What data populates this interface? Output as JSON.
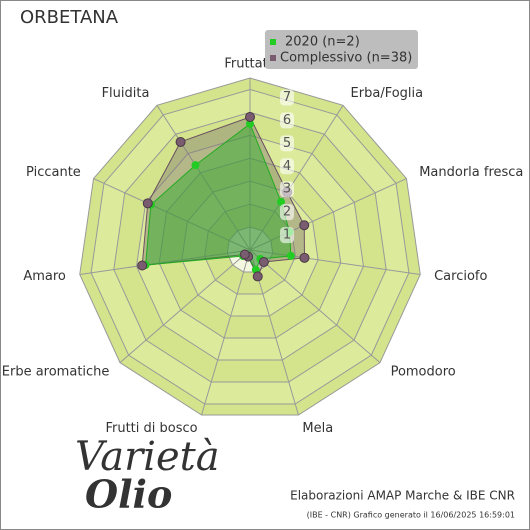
{
  "chart_data": {
    "type": "radar",
    "title": "ORBETANA",
    "categories": [
      "Fruttato",
      "Erba/Foglia",
      "Mandorla fresca",
      "Carciofo",
      "Pomodoro",
      "Mela",
      "Frutti di bosco",
      "Erbe aromatiche",
      "Amaro",
      "Piccante",
      "Fluidita"
    ],
    "series": [
      {
        "name": "2020 (n=2)",
        "color": "#22cc22",
        "values": [
          5.5,
          2.5,
          1.9,
          1.8,
          0.6,
          0.9,
          0.3,
          0.4,
          4.6,
          4.75,
          4.4
        ]
      },
      {
        "name": "Complessivo (n=38)",
        "color": "#7a5c70",
        "values": [
          5.8,
          3.0,
          2.6,
          2.4,
          0.8,
          1.2,
          0.3,
          0.3,
          4.75,
          4.9,
          5.6
        ]
      }
    ],
    "ylim": [
      0,
      7.5
    ],
    "yticks": [
      1,
      2,
      3,
      4,
      5,
      6,
      7
    ],
    "legend": "top-right"
  },
  "logo": {
    "line1": "Varietà",
    "line2": "Olio"
  },
  "footer": {
    "credit": "Elaborazioni AMAP Marche & IBE CNR",
    "generated": "(IBE - CNR) Grafico generato il 16/06/2025 16:59:01"
  }
}
